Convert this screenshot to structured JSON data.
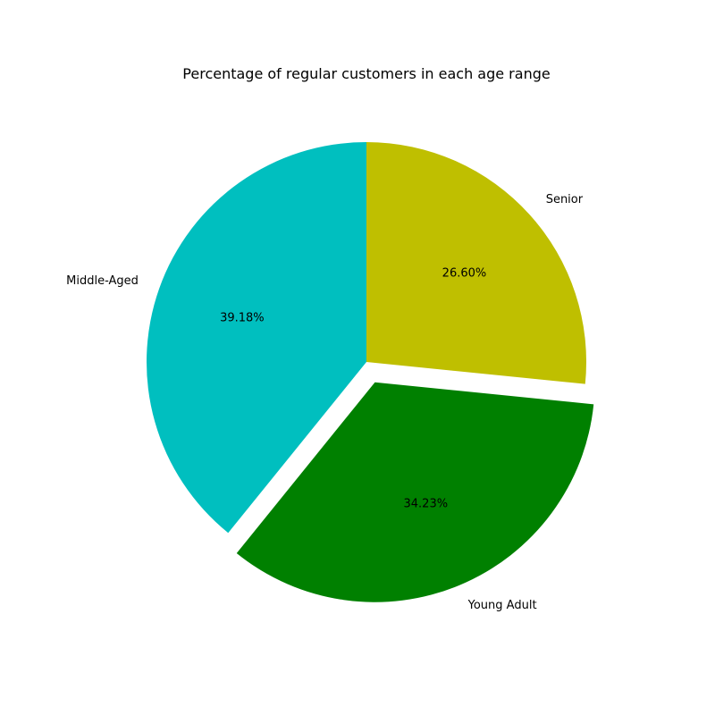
{
  "chart_data": {
    "type": "pie",
    "title": "Percentage of regular customers in each age range",
    "start_angle_deg": 90,
    "direction": "counterclockwise",
    "slices": [
      {
        "label": "Middle-Aged",
        "value": 39.18,
        "pct_label": "39.18%",
        "color": "#00bfbf",
        "explode": 0.0
      },
      {
        "label": "Young Adult",
        "value": 34.23,
        "pct_label": "34.23%",
        "color": "#008000",
        "explode": 0.1
      },
      {
        "label": "Senior",
        "value": 26.6,
        "pct_label": "26.60%",
        "color": "#bfbf00",
        "explode": 0.0
      }
    ]
  }
}
